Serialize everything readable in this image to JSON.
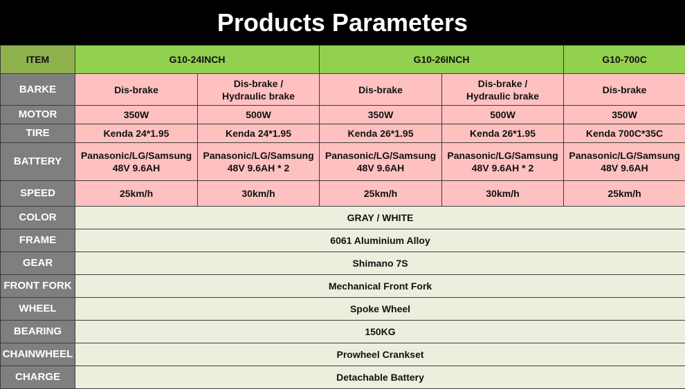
{
  "title": "Products Parameters",
  "header": {
    "item": "ITEM",
    "models": [
      "G10-24INCH",
      "G10-26INCH",
      "G10-700C"
    ]
  },
  "rows": {
    "brake": {
      "label": "BARKE",
      "values": [
        "Dis-brake",
        "Dis-brake  /\nHydraulic brake",
        "Dis-brake",
        "Dis-brake  /\nHydraulic brake",
        "Dis-brake"
      ]
    },
    "motor": {
      "label": "MOTOR",
      "values": [
        "350W",
        "500W",
        "350W",
        "500W",
        "350W"
      ]
    },
    "tire": {
      "label": "TIRE",
      "values": [
        "Kenda 24*1.95",
        "Kenda 24*1.95",
        "Kenda 26*1.95",
        "Kenda 26*1.95",
        "Kenda 700C*35C"
      ]
    },
    "battery": {
      "label": "BATTERY",
      "values": [
        "Panasonic/LG/Samsung\n48V 9.6AH",
        "Panasonic/LG/Samsung\n48V 9.6AH * 2",
        "Panasonic/LG/Samsung\n48V 9.6AH",
        "Panasonic/LG/Samsung\n48V 9.6AH * 2",
        "Panasonic/LG/Samsung\n48V 9.6AH"
      ]
    },
    "speed": {
      "label": "SPEED",
      "values": [
        "25km/h",
        "30km/h",
        "25km/h",
        "30km/h",
        "25km/h"
      ]
    }
  },
  "shared": {
    "color": {
      "label": "COLOR",
      "value": "GRAY / WHITE"
    },
    "frame": {
      "label": "FRAME",
      "value": "6061 Aluminium Alloy"
    },
    "gear": {
      "label": "GEAR",
      "value": "Shimano 7S"
    },
    "front_fork": {
      "label": "FRONT FORK",
      "value": "Mechanical Front Fork"
    },
    "wheel": {
      "label": "WHEEL",
      "value": "Spoke Wheel"
    },
    "bearing": {
      "label": "BEARING",
      "value": "150KG"
    },
    "chainwheel": {
      "label": "CHAINWHEEL",
      "value": "Prowheel Crankset"
    },
    "charge": {
      "label": "CHARGE",
      "value": "Detachable Battery"
    }
  }
}
